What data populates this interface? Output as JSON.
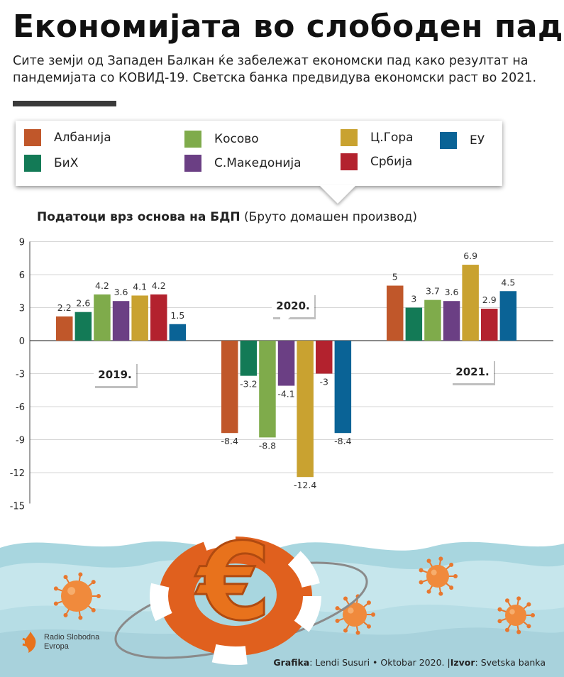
{
  "header": {
    "title": "Економијата во слободен пад",
    "subtitle": "Сите земји од Западен Балкан ќе забележат економски пад како резултат на пандемијата со КОВИД-19. Светска банка предвидува економски раст во 2021."
  },
  "legend": [
    {
      "name": "Албанија",
      "color": "#c0572a"
    },
    {
      "name": "БиХ",
      "color": "#137a56"
    },
    {
      "name": "Косово",
      "color": "#7fab4b"
    },
    {
      "name": "С.Македонија",
      "color": "#6b3f84"
    },
    {
      "name": "Ц.Гора",
      "color": "#c9a230"
    },
    {
      "name": "Србија",
      "color": "#b3222e"
    },
    {
      "name": "ЕУ",
      "color": "#0a6396"
    }
  ],
  "chart_title": {
    "bold": "Податоци врз основа на БДП",
    "normal": " (Бруто домашен производ)"
  },
  "chart_data": {
    "type": "bar",
    "categories": [
      "2019.",
      "2020.",
      "2021."
    ],
    "series": [
      {
        "name": "Албанија",
        "values": [
          2.2,
          -8.4,
          5
        ]
      },
      {
        "name": "БиХ",
        "values": [
          2.6,
          -3.2,
          3
        ]
      },
      {
        "name": "Косово",
        "values": [
          4.2,
          -8.8,
          3.7
        ]
      },
      {
        "name": "С.Македонија",
        "values": [
          3.6,
          -4.1,
          3.6
        ]
      },
      {
        "name": "Ц.Гора",
        "values": [
          4.1,
          -12.4,
          6.9
        ]
      },
      {
        "name": "Србија",
        "values": [
          4.2,
          -3,
          2.9
        ]
      },
      {
        "name": "ЕУ",
        "values": [
          1.5,
          -8.4,
          4.5
        ]
      }
    ],
    "y_ticks": [
      9,
      6,
      3,
      0,
      -3,
      -6,
      -9,
      -12,
      -15
    ],
    "ylim": [
      -15,
      9
    ],
    "grid": true,
    "legend_position": "top"
  },
  "footer": {
    "credit_label1": "Grafika",
    "credit_value1": ": Lendi Susuri • Oktobar 2020. |",
    "credit_label2": "Izvor",
    "credit_value2": ": Svetska banka",
    "logo_line1": "Radio Slobodna",
    "logo_line2": "Evropa"
  }
}
